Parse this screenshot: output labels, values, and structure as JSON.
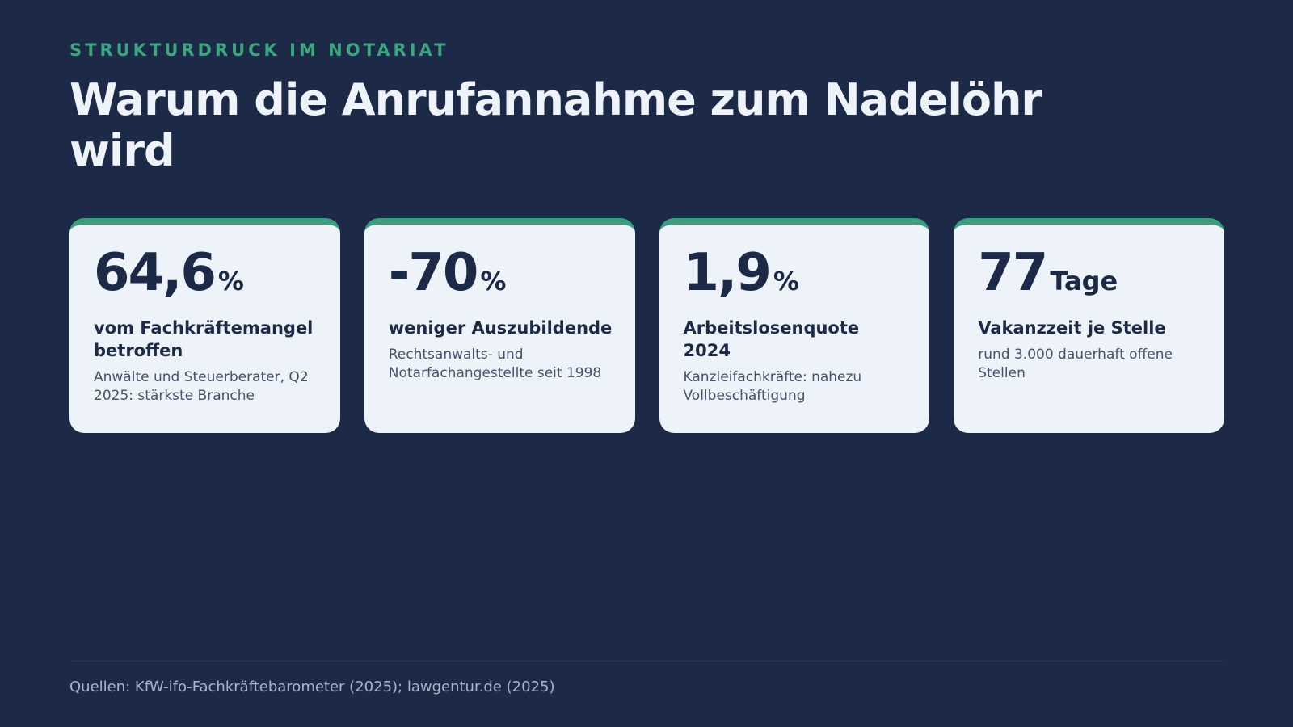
{
  "header": {
    "eyebrow": "STRUKTURDRUCK IM NOTARIAT",
    "title": "Warum die Anrufannahme zum Nadelöhr wird"
  },
  "cards": [
    {
      "value": "64,6",
      "unit": "%",
      "label": "vom Fachkräftemangel betroffen",
      "description": "Anwälte und Steuerberater, Q2 2025: stärkste Branche"
    },
    {
      "value": "-70",
      "unit": "%",
      "label": "weniger Auszubildende",
      "description": "Rechtsanwalts- und Notarfachangestellte seit 1998"
    },
    {
      "value": "1,9",
      "unit": "%",
      "label": "Arbeitslosenquote 2024",
      "description": "Kanzleifachkräfte: nahezu Vollbeschäftigung"
    },
    {
      "value": "77",
      "unit": "Tage",
      "label": "Vakanzzeit je Stelle",
      "description": "rund 3.000 dauerhaft offene Stellen"
    }
  ],
  "footer": {
    "sources": "Quellen: KfW-ifo-Fachkräftebarometer (2025); lawgentur.de (2025)"
  }
}
